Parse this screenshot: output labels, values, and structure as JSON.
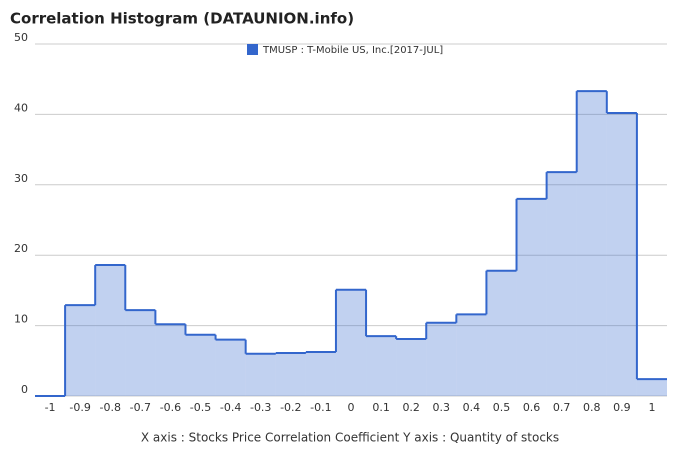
{
  "chart_data": {
    "type": "bar",
    "title": "Correlation Histogram (DATAUNION.info)",
    "footer": "X axis : Stocks Price Correlation Coefficient  Y axis : Quantity of stocks",
    "categories": [
      "-1",
      "-0.9",
      "-0.8",
      "-0.7",
      "-0.6",
      "-0.5",
      "-0.4",
      "-0.3",
      "-0.2",
      "-0.1",
      "0",
      "0.1",
      "0.2",
      "0.3",
      "0.4",
      "0.5",
      "0.6",
      "0.7",
      "0.8",
      "0.9",
      "1"
    ],
    "series": [
      {
        "name": "TMUSP : T-Mobile US, Inc.[2017-JUL]",
        "color": "#3366cc",
        "values": [
          0,
          12.9,
          18.6,
          12.2,
          10.2,
          8.7,
          8.0,
          6.0,
          6.1,
          6.25,
          15.1,
          8.5,
          8.1,
          10.4,
          11.6,
          17.8,
          28,
          31.8,
          43.3,
          40.2,
          2.4
        ]
      }
    ],
    "ylim": [
      0,
      50
    ],
    "yticks": [
      0,
      10,
      20,
      30,
      40,
      50
    ],
    "grid": true
  }
}
